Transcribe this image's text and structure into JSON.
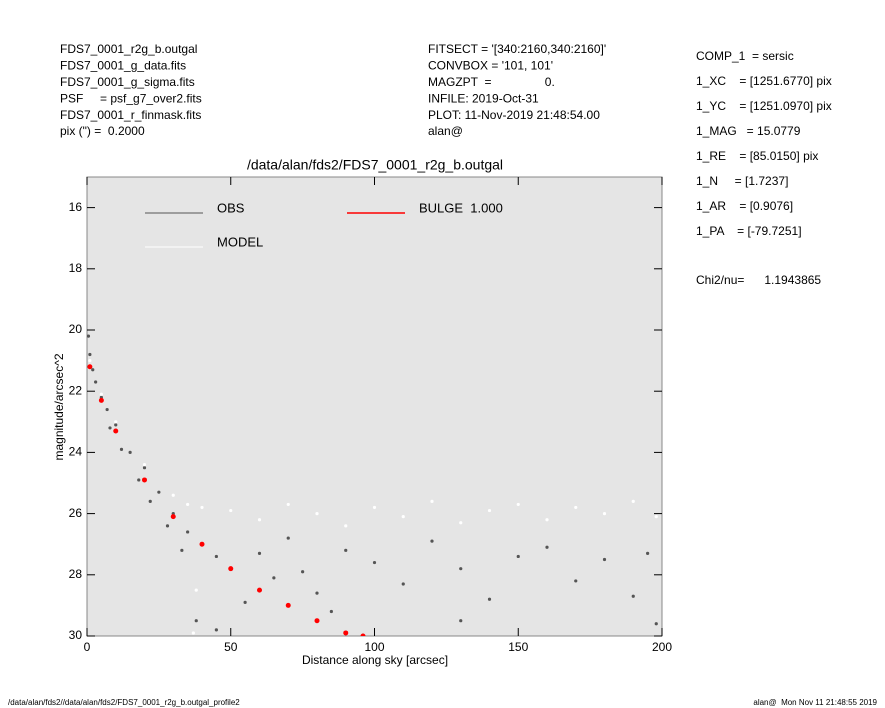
{
  "header": {
    "left": [
      "FDS7_0001_r2g_b.outgal",
      "FDS7_0001_g_data.fits",
      "FDS7_0001_g_sigma.fits",
      "PSF     = psf_g7_over2.fits",
      "FDS7_0001_r_finmask.fits",
      "pix (\") =  0.2000"
    ],
    "center": [
      "FITSECT = '[340:2160,340:2160]'",
      "CONVBOX = '101, 101'",
      "MAGZPT  =                0.",
      "INFILE: 2019-Oct-31",
      "PLOT: 11-Nov-2019 21:48:54.00",
      "alan@"
    ],
    "right": [
      "COMP_1  = sersic",
      "1_XC    = [1251.6770] pix",
      "1_YC    = [1251.0970] pix",
      "1_MAG   = 15.0779",
      "1_RE    = [85.0150] pix",
      "1_N     = [1.7237]",
      "1_AR    = [0.9076]",
      "1_PA    = [-79.7251]"
    ],
    "chi2": "Chi2/nu=      1.1943865"
  },
  "footer": {
    "left": "/data/alan/fds2//data/alan/fds2/FDS7_0001_r2g_b.outgal_profile2",
    "right": "alan@  Mon Nov 11 21:48:55 2019"
  },
  "chart_data": {
    "type": "scatter",
    "title": "/data/alan/fds2/FDS7_0001_r2g_b.outgal",
    "x_label": "Distance along sky [arcsec]",
    "y_label": "magnitude/arcsec^2",
    "xlim": [
      0,
      200
    ],
    "xticks": [
      0,
      50,
      100,
      150,
      200
    ],
    "ylim": [
      30,
      15
    ],
    "yticks": [
      16,
      18,
      20,
      22,
      24,
      26,
      28,
      30
    ],
    "background": "#e5e5e5",
    "series": [
      {
        "name": "OBS",
        "color": "#555555",
        "x": [
          0.5,
          1,
          2,
          3,
          5,
          7,
          8,
          10,
          12,
          15,
          18,
          20,
          22,
          25,
          28,
          30,
          33,
          35,
          38,
          40,
          45,
          50,
          55,
          60,
          65,
          70,
          75,
          80,
          90,
          100,
          110,
          120,
          130,
          140,
          150,
          160,
          170,
          180,
          190,
          195,
          198,
          45,
          85,
          130
        ],
        "values": [
          20.2,
          20.8,
          21.3,
          21.7,
          22.2,
          22.6,
          23.2,
          23.1,
          23.9,
          24.0,
          24.9,
          24.5,
          25.6,
          25.3,
          26.4,
          26.0,
          27.2,
          26.6,
          29.5,
          27.0,
          27.4,
          27.8,
          28.9,
          27.3,
          28.1,
          26.8,
          27.9,
          28.6,
          27.2,
          27.6,
          28.3,
          26.9,
          27.8,
          28.8,
          27.4,
          27.1,
          28.2,
          27.5,
          28.7,
          27.3,
          29.6,
          29.8,
          29.2,
          29.5
        ]
      },
      {
        "name": "MODEL",
        "color": "#ffffff",
        "x": [
          1,
          5,
          10,
          20,
          30,
          35,
          40,
          50,
          60,
          70,
          80,
          90,
          100,
          110,
          120,
          130,
          140,
          150,
          160,
          170,
          180,
          190,
          198,
          37,
          38
        ],
        "values": [
          21.0,
          22.1,
          23.0,
          24.4,
          25.4,
          25.7,
          25.8,
          25.9,
          26.2,
          25.7,
          26.0,
          26.4,
          25.8,
          26.1,
          25.6,
          26.3,
          25.9,
          25.7,
          26.2,
          25.8,
          26.0,
          25.6,
          26.1,
          29.9,
          28.5
        ]
      },
      {
        "name": "BULGE  1.000",
        "color": "#ff0000",
        "x": [
          1,
          5,
          10,
          20,
          30,
          40,
          50,
          60,
          70,
          80,
          90,
          96
        ],
        "values": [
          21.2,
          22.3,
          23.3,
          24.9,
          26.1,
          27.0,
          27.8,
          28.5,
          29.0,
          29.5,
          29.9,
          30.0
        ]
      }
    ]
  }
}
